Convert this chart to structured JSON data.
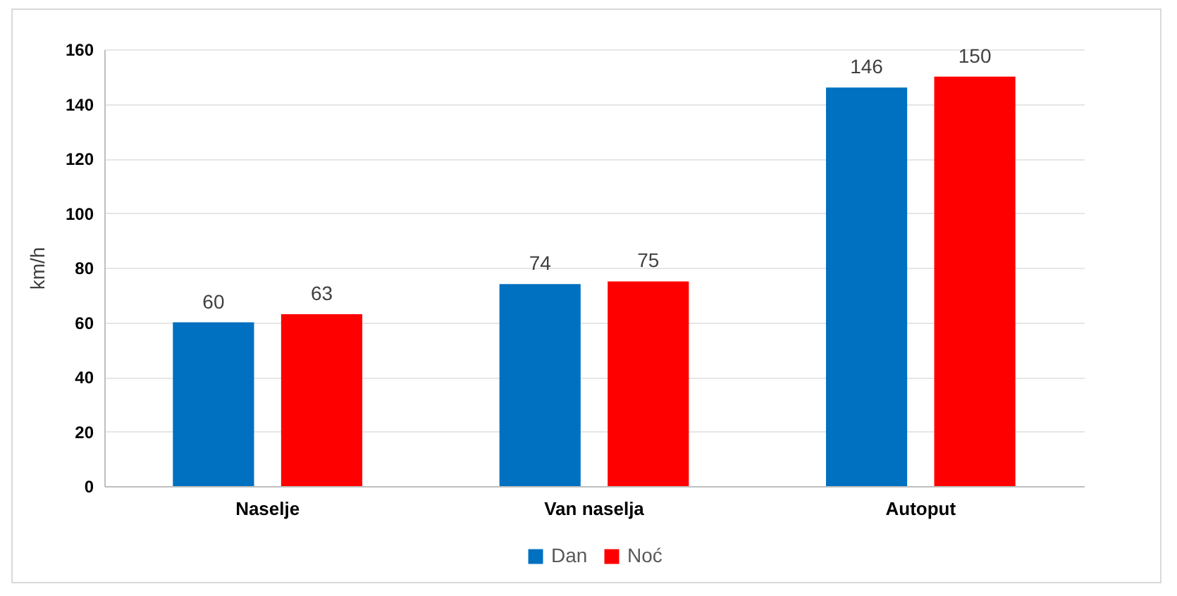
{
  "chart_data": {
    "type": "bar",
    "ylabel": "km/h",
    "categories": [
      "Naselje",
      "Van naselja",
      "Autoput"
    ],
    "series": [
      {
        "name": "Dan",
        "color": "#0070c0",
        "values": [
          60,
          74,
          146
        ]
      },
      {
        "name": "Noć",
        "color": "#ff0000",
        "values": [
          63,
          75,
          150
        ]
      }
    ],
    "ylim": [
      0,
      160
    ],
    "yticks": [
      0,
      20,
      40,
      60,
      80,
      100,
      120,
      140,
      160
    ],
    "grid": "y",
    "legend": "bottom",
    "data_labels": true
  }
}
